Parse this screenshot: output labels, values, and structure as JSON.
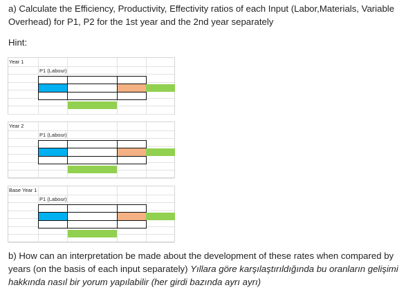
{
  "question_a": "a) Calculate the Efficiency, Productivity, Effectivity ratios of each Input (Labor,Materials, Variable Overhead) for P1, P2 for the 1st year and the 2nd year separately",
  "hint_label": "Hint:",
  "sheets": [
    {
      "year_label": "Year 1",
      "product_label": "P1 (Labour)"
    },
    {
      "year_label": "Year 2",
      "product_label": "P1 (Labour)"
    },
    {
      "year_label": "Base Year 1",
      "product_label": "P1 (Labour)"
    }
  ],
  "question_b": {
    "english": "b) How can an interpretation be made about the development of these rates when compared by years (on the basis of each input separately)",
    "turkish": "Yıllara göre karşılaştırıldığında bu oranların gelişimi hakkında nasıl bir yorum yapılabilir (her girdi bazında ayrı ayrı)"
  },
  "colors": {
    "blue": "#00b0f0",
    "orange": "#f4b183",
    "green": "#92d050",
    "grid": "#e1e1e1",
    "border": "#111111"
  }
}
